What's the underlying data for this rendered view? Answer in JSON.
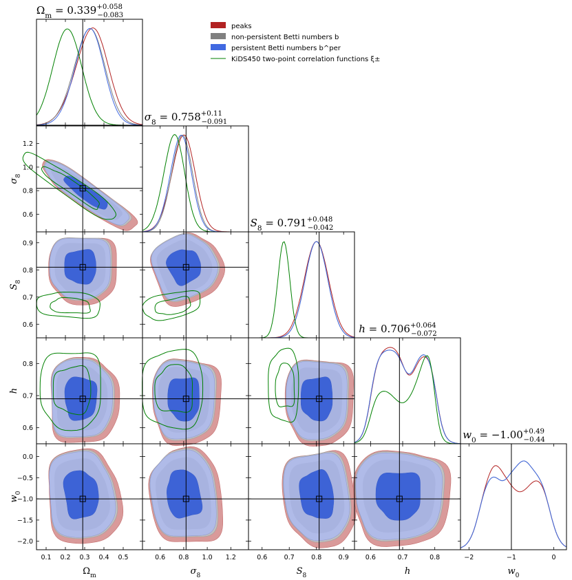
{
  "chart_data": {
    "type": "corner",
    "parameters": [
      {
        "name": "Omega_m",
        "label": "Ω_m",
        "ticks": [
          0.1,
          0.2,
          0.3,
          0.4,
          0.5
        ],
        "tick_labels": [
          "0.1",
          "0.2",
          "0.3",
          "0.4",
          "0.5"
        ],
        "range": [
          0.05,
          0.6
        ],
        "fiducial": 0.29
      },
      {
        "name": "sigma_8",
        "label": "σ_8",
        "ticks": [
          0.6,
          0.8,
          1.0,
          1.2
        ],
        "tick_labels": [
          "0.6",
          "0.8",
          "1.0",
          "1.2"
        ],
        "range": [
          0.45,
          1.35
        ],
        "fiducial": 0.82
      },
      {
        "name": "S_8",
        "label": "S_8",
        "ticks": [
          0.6,
          0.7,
          0.8,
          0.9
        ],
        "tick_labels": [
          "0.6",
          "0.7",
          "0.8",
          "0.9"
        ],
        "range": [
          0.55,
          0.94
        ],
        "fiducial": 0.81
      },
      {
        "name": "h",
        "label": "h",
        "ticks": [
          0.6,
          0.7,
          0.8
        ],
        "tick_labels": [
          "0.6",
          "0.7",
          "0.8"
        ],
        "range": [
          0.55,
          0.88
        ],
        "fiducial": 0.69
      },
      {
        "name": "w_0",
        "label": "w_0",
        "ticks": [
          -2,
          -1,
          0
        ],
        "tick_labels": [
          "−2",
          "−1",
          "0"
        ],
        "range": [
          -2.2,
          0.3
        ],
        "fiducial": -1.0
      }
    ],
    "y_ticks": {
      "sigma_8": {
        "ticks": [
          0.6,
          0.8,
          1.0,
          1.2
        ],
        "labels": [
          "0.6",
          "0.8",
          "1.0",
          "1.2"
        ]
      },
      "S_8": {
        "ticks": [
          0.6,
          0.7,
          0.8,
          0.9
        ],
        "labels": [
          "0.6",
          "0.7",
          "0.8",
          "0.9"
        ]
      },
      "h": {
        "ticks": [
          0.6,
          0.7,
          0.8
        ],
        "labels": [
          "0.6",
          "0.7",
          "0.8"
        ]
      },
      "w_0": {
        "ticks": [
          -2.0,
          -1.5,
          -1.0,
          -0.5,
          0.0
        ],
        "labels": [
          "−2.0",
          "−1.5",
          "−1.0",
          "−0.5",
          "0.0"
        ]
      }
    },
    "x_labels": [
      "Ω_m",
      "σ_8",
      "S_8",
      "h",
      "w_0"
    ],
    "y_labels": [
      "σ_8",
      "S_8",
      "h",
      "w_0"
    ],
    "titles": [
      {
        "param": "Ω_m",
        "value": "0.339",
        "plus": "+0.058",
        "minus": "−0.083"
      },
      {
        "param": "σ_8",
        "value": "0.758",
        "plus": "+0.11",
        "minus": "−0.091"
      },
      {
        "param": "S_8",
        "value": "0.791",
        "plus": "+0.048",
        "minus": "−0.042"
      },
      {
        "param": "h",
        "value": "0.706",
        "plus": "+0.064",
        "minus": "−0.072"
      },
      {
        "param": "w_0",
        "value": "−1.00",
        "plus": "+0.49",
        "minus": "−0.44"
      }
    ],
    "legend": [
      {
        "label": "peaks",
        "color": "#b22222",
        "kind": "patch"
      },
      {
        "label": "non-persistent Betti numbers b",
        "color": "#808080",
        "kind": "patch"
      },
      {
        "label": "persistent Betti numbers b^per",
        "color": "#4169e1",
        "kind": "patch"
      },
      {
        "label": "KiDS450 two-point correlation functions ξ±",
        "color": "#008000",
        "kind": "line"
      }
    ],
    "legend_placement": "top-center",
    "series": [
      {
        "name": "peaks",
        "color": "#b22222",
        "fill_outer": "#d99a9a",
        "means": [
          0.33,
          0.79,
          0.8,
          0.7,
          -1.05
        ],
        "sds": [
          0.075,
          0.12,
          0.05,
          0.07,
          0.45
        ]
      },
      {
        "name": "non-persistent Betti numbers",
        "color": "#808080",
        "fill_outer": "#c0c0c0",
        "means": [
          0.32,
          0.78,
          0.8,
          0.7,
          -0.95
        ],
        "sds": [
          0.07,
          0.11,
          0.045,
          0.065,
          0.45
        ]
      },
      {
        "name": "persistent Betti numbers",
        "color": "#4169e1",
        "fill_outer": "#b0bbe8",
        "means": [
          0.32,
          0.77,
          0.8,
          0.7,
          -0.95
        ],
        "sds": [
          0.065,
          0.11,
          0.045,
          0.065,
          0.44
        ]
      },
      {
        "name": "KiDS450 two-point correlation functions",
        "color": "#008000",
        "means": [
          0.22,
          0.72,
          0.68,
          0.72,
          null
        ],
        "sds": [
          0.07,
          0.12,
          0.03,
          0.07,
          null
        ]
      }
    ]
  }
}
